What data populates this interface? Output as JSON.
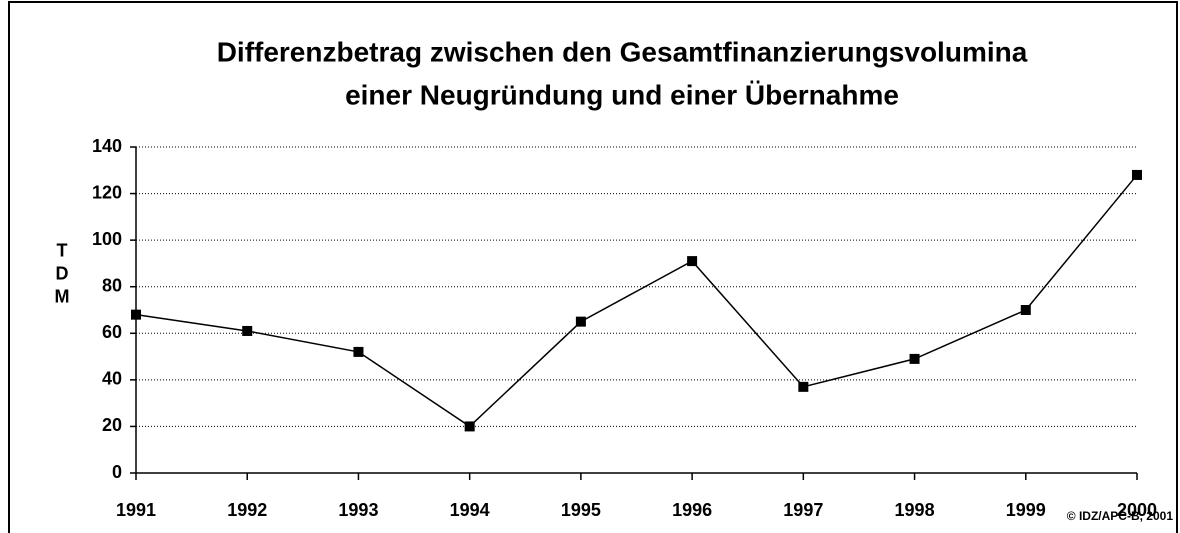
{
  "chart_data": {
    "type": "line",
    "title": [
      "Differenzbetrag zwischen den Gesamtfinanzierungsvolumina",
      "einer Neugründung und einer Übernahme"
    ],
    "ylabel": "TDM",
    "annotation": "© IDZ/APC-B, 2001",
    "x": [
      1991,
      1992,
      1993,
      1994,
      1995,
      1996,
      1997,
      1998,
      1999,
      2000
    ],
    "series": [
      {
        "name": null,
        "color": "#000000",
        "values": [
          68,
          61,
          52,
          20,
          65,
          91,
          37,
          49,
          70,
          128
        ]
      }
    ],
    "xlim": [
      1991,
      2000
    ],
    "xticks": [
      1991,
      1992,
      1993,
      1994,
      1995,
      1996,
      1997,
      1998,
      1999,
      2000
    ],
    "ylim": [
      0,
      140
    ],
    "yticks": [
      0,
      20,
      40,
      60,
      80,
      100,
      120,
      140
    ],
    "grid": true,
    "legend": false
  }
}
